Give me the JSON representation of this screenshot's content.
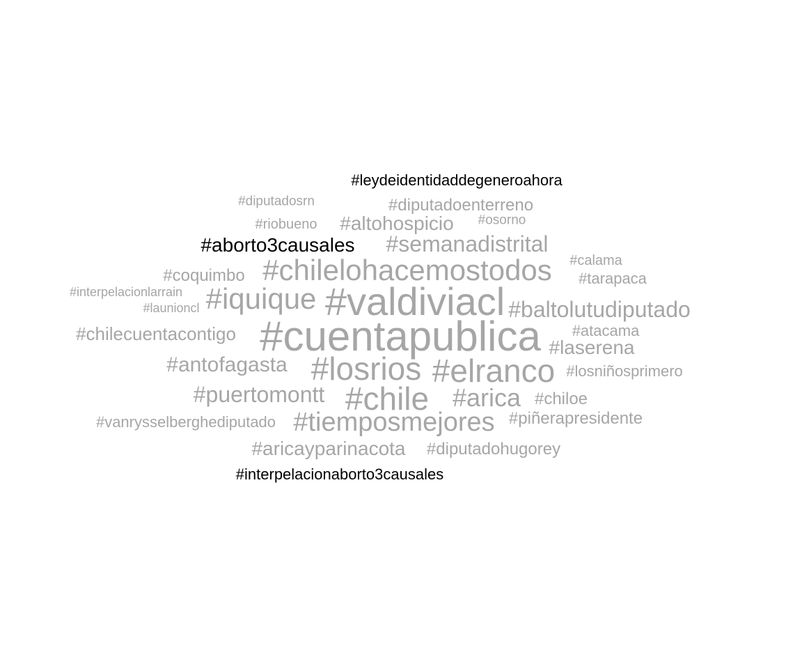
{
  "colors": {
    "background": "#ffffff",
    "highlight": "#000000",
    "muted": "#a6a6a6"
  },
  "words": [
    {
      "text": "#leydeidentidaddegeneroahora",
      "color": "#000000"
    },
    {
      "text": "#diputadosrn",
      "color": "#a6a6a6"
    },
    {
      "text": "#diputadoenterreno",
      "color": "#a6a6a6"
    },
    {
      "text": "#riobueno",
      "color": "#a6a6a6"
    },
    {
      "text": "#altohospicio",
      "color": "#a6a6a6"
    },
    {
      "text": "#osorno",
      "color": "#a6a6a6"
    },
    {
      "text": "#aborto3causales",
      "color": "#000000"
    },
    {
      "text": "#semanadistrital",
      "color": "#a6a6a6"
    },
    {
      "text": "#calama",
      "color": "#a6a6a6"
    },
    {
      "text": "#coquimbo",
      "color": "#a6a6a6"
    },
    {
      "text": "#chilelohacemostodos",
      "color": "#a6a6a6"
    },
    {
      "text": "#tarapaca",
      "color": "#a6a6a6"
    },
    {
      "text": "#interpelacionlarrain",
      "color": "#a6a6a6"
    },
    {
      "text": "#iquique",
      "color": "#a6a6a6"
    },
    {
      "text": "#valdiviacl",
      "color": "#a6a6a6"
    },
    {
      "text": "#launioncl",
      "color": "#a6a6a6"
    },
    {
      "text": "#baltolutudiputado",
      "color": "#a6a6a6"
    },
    {
      "text": "#chilecuentacontigo",
      "color": "#a6a6a6"
    },
    {
      "text": "#cuentapublica",
      "color": "#a6a6a6"
    },
    {
      "text": "#atacama",
      "color": "#a6a6a6"
    },
    {
      "text": "#laserena",
      "color": "#a6a6a6"
    },
    {
      "text": "#antofagasta",
      "color": "#a6a6a6"
    },
    {
      "text": "#losrios",
      "color": "#a6a6a6"
    },
    {
      "text": "#elranco",
      "color": "#a6a6a6"
    },
    {
      "text": "#losniñosprimero",
      "color": "#a6a6a6"
    },
    {
      "text": "#puertomontt",
      "color": "#a6a6a6"
    },
    {
      "text": "#chile",
      "color": "#a6a6a6"
    },
    {
      "text": "#arica",
      "color": "#a6a6a6"
    },
    {
      "text": "#chiloe",
      "color": "#a6a6a6"
    },
    {
      "text": "#vanrysselberghediputado",
      "color": "#a6a6a6"
    },
    {
      "text": "#tiemposmejores",
      "color": "#a6a6a6"
    },
    {
      "text": "#piñerapresidente",
      "color": "#a6a6a6"
    },
    {
      "text": "#aricayparinacota",
      "color": "#a6a6a6"
    },
    {
      "text": "#diputadohugorey",
      "color": "#a6a6a6"
    },
    {
      "text": "#interpelacionaborto3causales",
      "color": "#000000"
    }
  ]
}
